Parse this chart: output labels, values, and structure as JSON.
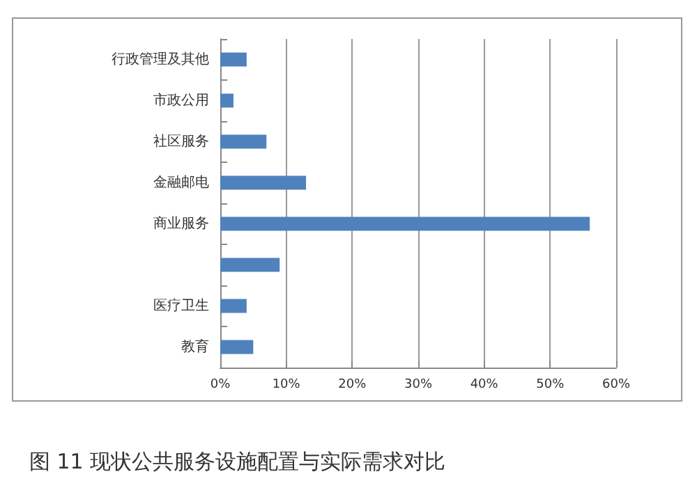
{
  "chart_data": {
    "type": "bar",
    "orientation": "horizontal",
    "title": "图 11 现状公共服务设施配置与实际需求对比",
    "categories": [
      "行政管理及其他",
      "市政公用",
      "社区服务",
      "金融邮电",
      "商业服务",
      null,
      "医疗卫生",
      "教育"
    ],
    "values": [
      4,
      2,
      7,
      13,
      56,
      9,
      4,
      5
    ],
    "color": "#4f81bd",
    "xlim": [
      0,
      60
    ],
    "xticks": [
      {
        "value": 0,
        "label": "0%"
      },
      {
        "value": 10,
        "label": "10%"
      },
      {
        "value": 20,
        "label": "20%"
      },
      {
        "value": 30,
        "label": "30%"
      },
      {
        "value": 40,
        "label": "40%"
      },
      {
        "value": 50,
        "label": "50%"
      },
      {
        "value": 60,
        "label": "60%"
      }
    ],
    "grid": "x"
  }
}
